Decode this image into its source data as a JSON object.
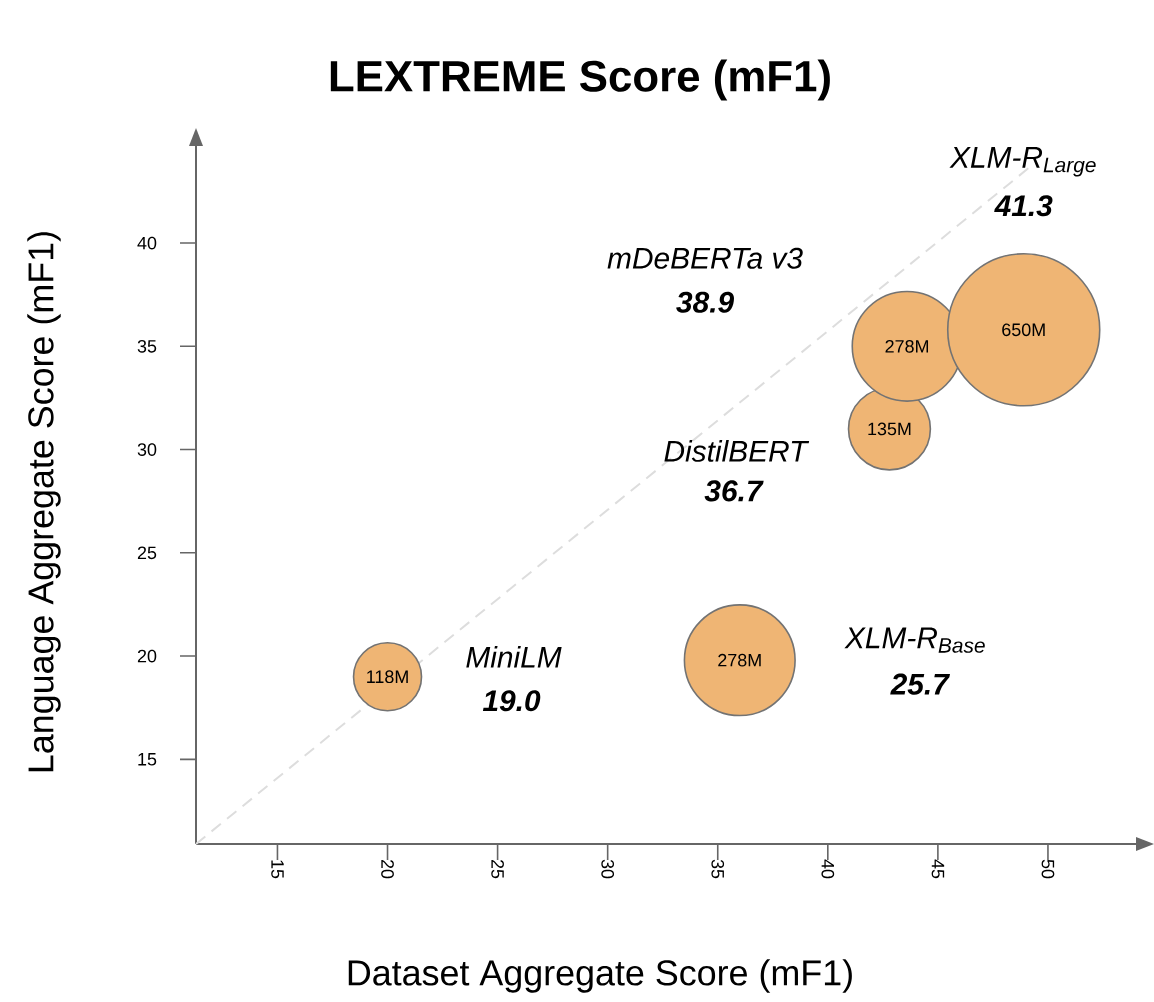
{
  "chart_data": {
    "type": "bubble",
    "title": "LEXTREME Score (mF1)",
    "xlabel": "Dataset Aggregate Score (mF1)",
    "ylabel": "Language Aggregate Score (mF1)",
    "xlim": [
      11.3,
      54
    ],
    "ylim": [
      10.9,
      44.7
    ],
    "xticks": [
      15,
      20,
      25,
      30,
      35,
      40,
      45,
      50
    ],
    "yticks": [
      15,
      20,
      25,
      30,
      35,
      40
    ],
    "series": [
      {
        "type": "line",
        "x": [
          11.3,
          49.2
        ],
        "values": [
          10.9,
          43.7
        ],
        "color": "#dddddd",
        "line_style": "dashed"
      },
      {
        "x": [
          20,
          36,
          42.8,
          43.6,
          48.9
        ],
        "values": [
          19.0,
          19.8,
          31.0,
          35.0,
          35.8
        ],
        "sizes": [
          0.2,
          0.53,
          0.29,
          0.52,
          1
        ],
        "color": "#efb574"
      }
    ],
    "annotations": [
      {
        "text": "118M",
        "x": 20,
        "y": 19.0
      },
      {
        "text": "278M",
        "x": 36,
        "y": 19.8
      },
      {
        "text": "135M",
        "x": 42.8,
        "y": 31.0
      },
      {
        "text": "278M",
        "x": 43.6,
        "y": 35.0
      },
      {
        "text": "650M",
        "x": 48.9,
        "y": 35.8
      },
      "MiniLM",
      "19.0",
      "XLM-R$_{Base}$",
      "25.7",
      "DistilBERT",
      "36.7",
      "mDeBERTa v3",
      "38.9",
      "XLM-R$_{Large}$",
      "41.3"
    ]
  }
}
